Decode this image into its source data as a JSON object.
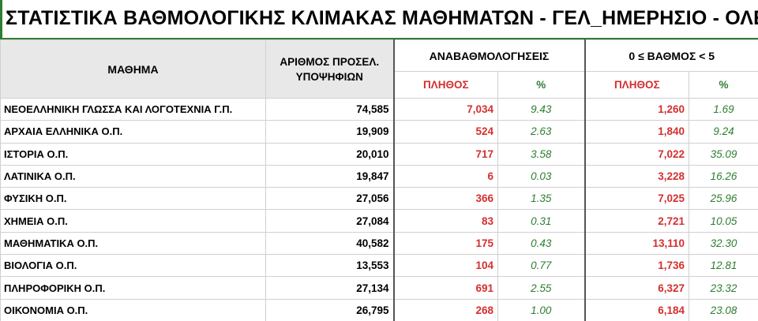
{
  "title": "ΣΤΑΤΙΣΤΙΚΑ ΒΑΘΜΟΛΟΓΙΚΗΣ ΚΛΙΜΑΚΑΣ ΜΑΘΗΜΑΤΩΝ - ΓΕΛ_ΗΜΕΡΗΣΙΟ - ΟΛΕΣ ΟΙ",
  "colors": {
    "accent_green": "#2e7d32",
    "value_red": "#d32f2f",
    "header_gray": "#e8e8e8"
  },
  "headers": {
    "subject": "ΜΑΘΗΜΑ",
    "count": "ΑΡΙΘΜΟΣ ΠΡΟΣΕΛ. ΥΠΟΨΗΦΙΩΝ",
    "group1": "ΑΝΑΒΑΘΜΟΛΟΓΗΣΕΙΣ",
    "group2": "0 ≤ ΒΑΘΜΟΣ < 5",
    "plithos": "ΠΛΗΘΟΣ",
    "pct": "%"
  },
  "rows": [
    {
      "subject": "ΝΕΟΕΛΛΗΝΙΚΗ ΓΛΩΣΣΑ ΚΑΙ ΛΟΓΟΤΕΧΝΙΑ Γ.Π.",
      "total": "74,585",
      "reg_count": "7,034",
      "reg_pct": "9.43",
      "fail_count": "1,260",
      "fail_pct": "1.69"
    },
    {
      "subject": "ΑΡΧΑΙΑ ΕΛΛΗΝΙΚΑ Ο.Π.",
      "total": "19,909",
      "reg_count": "524",
      "reg_pct": "2.63",
      "fail_count": "1,840",
      "fail_pct": "9.24"
    },
    {
      "subject": "ΙΣΤΟΡΙΑ Ο.Π.",
      "total": "20,010",
      "reg_count": "717",
      "reg_pct": "3.58",
      "fail_count": "7,022",
      "fail_pct": "35.09"
    },
    {
      "subject": "ΛΑΤΙΝΙΚΑ Ο.Π.",
      "total": "19,847",
      "reg_count": "6",
      "reg_pct": "0.03",
      "fail_count": "3,228",
      "fail_pct": "16.26"
    },
    {
      "subject": "ΦΥΣΙΚΗ Ο.Π.",
      "total": "27,056",
      "reg_count": "366",
      "reg_pct": "1.35",
      "fail_count": "7,025",
      "fail_pct": "25.96"
    },
    {
      "subject": "ΧΗΜΕΙΑ Ο.Π.",
      "total": "27,084",
      "reg_count": "83",
      "reg_pct": "0.31",
      "fail_count": "2,721",
      "fail_pct": "10.05"
    },
    {
      "subject": "ΜΑΘΗΜΑΤΙΚΑ Ο.Π.",
      "total": "40,582",
      "reg_count": "175",
      "reg_pct": "0.43",
      "fail_count": "13,110",
      "fail_pct": "32.30"
    },
    {
      "subject": "ΒΙΟΛΟΓΙΑ Ο.Π.",
      "total": "13,553",
      "reg_count": "104",
      "reg_pct": "0.77",
      "fail_count": "1,736",
      "fail_pct": "12.81"
    },
    {
      "subject": "ΠΛΗΡΟΦΟΡΙΚΗ Ο.Π.",
      "total": "27,134",
      "reg_count": "691",
      "reg_pct": "2.55",
      "fail_count": "6,327",
      "fail_pct": "23.32"
    },
    {
      "subject": "ΟΙΚΟΝΟΜΙΑ Ο.Π.",
      "total": "26,795",
      "reg_count": "268",
      "reg_pct": "1.00",
      "fail_count": "6,184",
      "fail_pct": "23.08"
    }
  ]
}
